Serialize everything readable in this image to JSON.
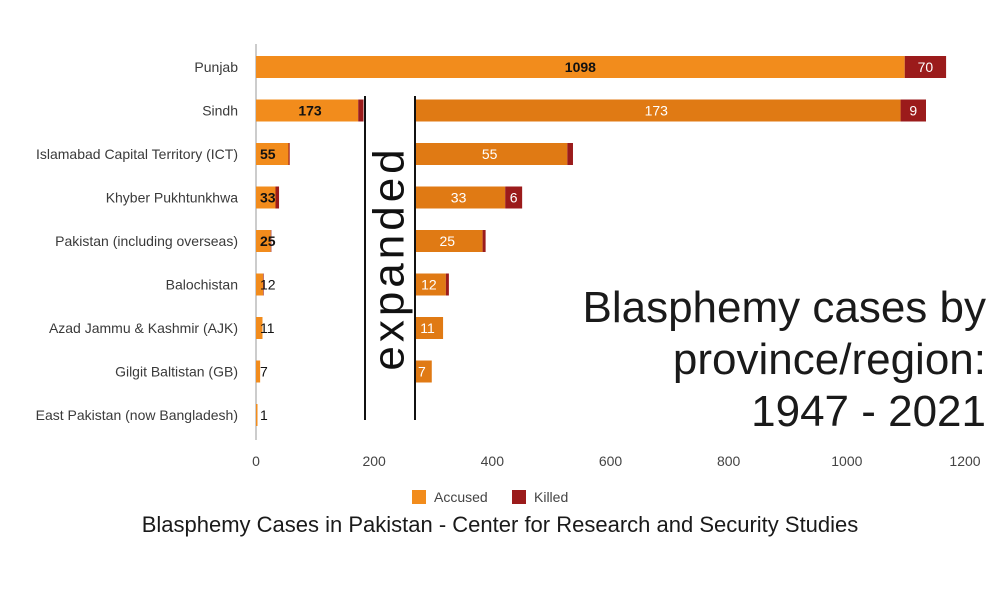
{
  "chart_data": {
    "type": "bar",
    "orientation": "horizontal",
    "stacked": true,
    "categories": [
      "Punjab",
      "Sindh",
      "Islamabad Capital Territory (ICT)",
      "Khyber Pukhtunkhwa",
      "Pakistan (including overseas)",
      "Balochistan",
      "Azad Jammu & Kashmir (AJK)",
      "Gilgit Baltistan (GB)",
      "East Pakistan (now Bangladesh)"
    ],
    "series": [
      {
        "name": "Accused",
        "color": "#f28c1c",
        "values": [
          1098,
          173,
          55,
          33,
          25,
          12,
          11,
          7,
          1
        ]
      },
      {
        "name": "Killed",
        "color": "#9b1b1b",
        "values": [
          70,
          9,
          2,
          6,
          1,
          1,
          0,
          0,
          0
        ]
      }
    ],
    "xticks": [
      0,
      200,
      400,
      600,
      800,
      1000,
      1200
    ],
    "xlim": [
      0,
      1200
    ],
    "legend": "bottom",
    "expanded_label": "expanded",
    "expanded_accused_color": "#e07a14"
  },
  "title_lines": [
    "Blasphemy cases by",
    "province/region:",
    "1947 - 2021"
  ],
  "source": "Blasphemy Cases in Pakistan - Center for Research and Security Studies"
}
